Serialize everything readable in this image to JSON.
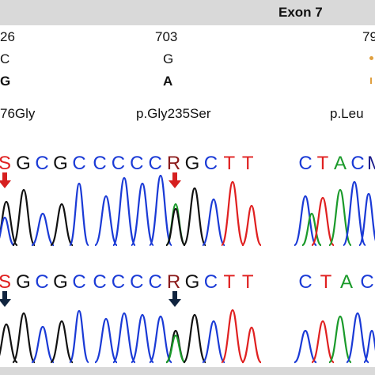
{
  "header": {
    "title": "Exon 7"
  },
  "columns": [
    {
      "position": "26",
      "ref": "C",
      "alt": "G",
      "protein": "76Gly"
    },
    {
      "position": "703",
      "ref": "G",
      "alt": "A",
      "protein": "p.Gly235Ser"
    },
    {
      "position": "79",
      "ref": "",
      "alt": "",
      "protein": "p.Leu"
    }
  ],
  "traces": {
    "panel1_top": {
      "bases": [
        "S",
        "G",
        "C",
        "G",
        "C"
      ]
    },
    "panel2_top": {
      "bases": [
        "C",
        "C",
        "C",
        "C",
        "R",
        "G",
        "C",
        "T",
        "T"
      ]
    },
    "panel3_top": {
      "bases": [
        "C",
        "T",
        "A",
        "C",
        "M"
      ]
    },
    "panel1_bottom": {
      "bases": [
        "S",
        "G",
        "C",
        "G",
        "C"
      ]
    },
    "panel2_bottom": {
      "bases": [
        "C",
        "C",
        "C",
        "C",
        "R",
        "G",
        "C",
        "T",
        "T"
      ]
    },
    "panel3_bottom": {
      "bases": [
        "C",
        "T",
        "A",
        "C"
      ]
    }
  },
  "colors": {
    "C": "#1a3ad6",
    "G": "#111111",
    "T": "#e02020",
    "A": "#1a9a2a",
    "S": "#e02020",
    "R": "#8b1a1a",
    "M": "#1a1a8a",
    "arrow_top": "#d62020",
    "arrow_bottom": "#10243f"
  }
}
